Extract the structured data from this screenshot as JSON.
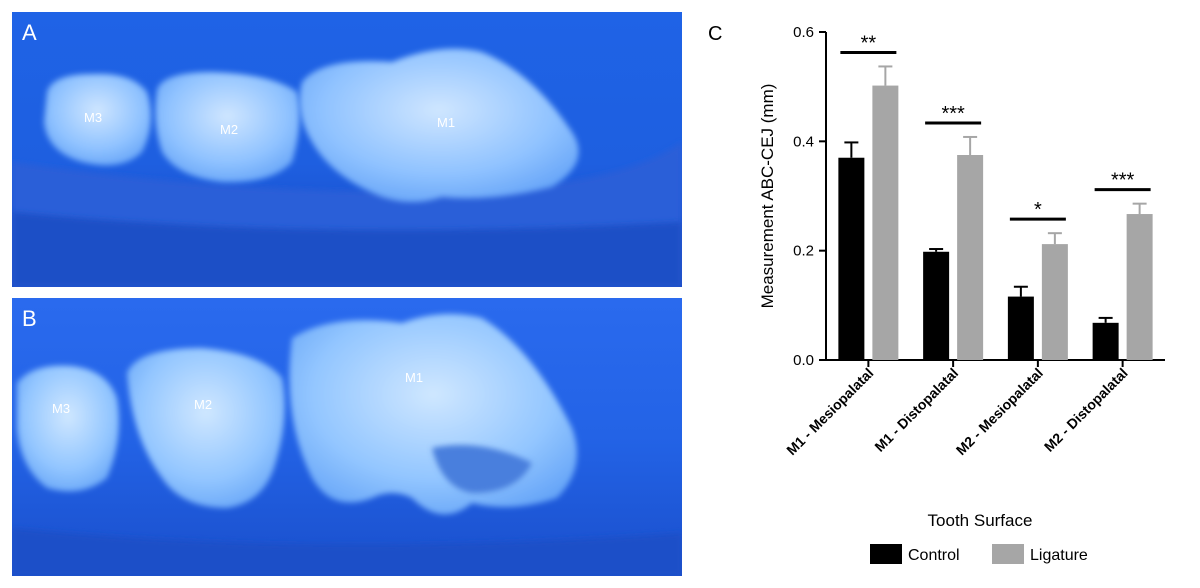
{
  "panels": {
    "a": {
      "letter": "A",
      "labels": [
        "M3",
        "M2",
        "M1"
      ]
    },
    "b": {
      "letter": "B",
      "labels": [
        "M3",
        "M2",
        "M1"
      ]
    },
    "c": {
      "letter": "C"
    }
  },
  "colors": {
    "control": "#000000",
    "ligature": "#a6a6a6",
    "background_blue": "#1a5fe0"
  },
  "chart_data": {
    "type": "bar",
    "title": "",
    "xlabel": "Tooth Surface",
    "ylabel": "Measurement ABC-CEJ (mm)",
    "ylim": [
      0,
      0.6
    ],
    "yticks": [
      "0.0",
      "0.2",
      "0.4",
      "0.6"
    ],
    "categories": [
      "M1 - Mesiopalatal",
      "M1 - Distopalatal",
      "M2 - Mesiopalatal",
      "M2 - Distopalatal"
    ],
    "series": [
      {
        "name": "Control",
        "values": [
          0.37,
          0.198,
          0.116,
          0.068
        ],
        "errors": [
          0.028,
          0.005,
          0.018,
          0.009
        ]
      },
      {
        "name": "Ligature",
        "values": [
          0.502,
          0.375,
          0.212,
          0.267
        ],
        "errors": [
          0.035,
          0.033,
          0.02,
          0.019
        ]
      }
    ],
    "significance": [
      "**",
      "***",
      "*",
      "***"
    ],
    "legend_position": "bottom",
    "grid": false
  }
}
